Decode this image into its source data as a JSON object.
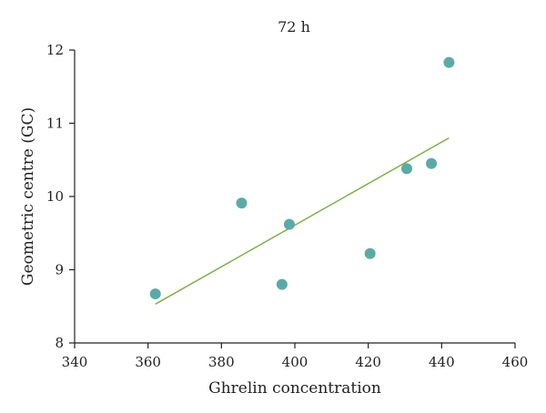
{
  "chart_data": {
    "type": "scatter",
    "title": "72 h",
    "xlabel": "Ghrelin concentration",
    "ylabel": "Geometric centre (GC)",
    "xlim": [
      340,
      460
    ],
    "ylim": [
      8,
      12
    ],
    "xticks": [
      340,
      360,
      380,
      400,
      420,
      440,
      460
    ],
    "yticks": [
      8,
      9,
      10,
      11,
      12
    ],
    "grid": false,
    "points": [
      {
        "x": 362,
        "y": 8.67
      },
      {
        "x": 385.5,
        "y": 9.91
      },
      {
        "x": 396.5,
        "y": 8.8
      },
      {
        "x": 398.5,
        "y": 9.62
      },
      {
        "x": 420.5,
        "y": 9.22
      },
      {
        "x": 430.5,
        "y": 10.38
      },
      {
        "x": 437.2,
        "y": 10.45
      },
      {
        "x": 442,
        "y": 11.83
      }
    ],
    "trendline": {
      "x": [
        362,
        442
      ],
      "y": [
        8.53,
        10.8
      ]
    },
    "colors": {
      "points": "#5aaba8",
      "trendline": "#7cb342",
      "axes": "#222222"
    }
  }
}
